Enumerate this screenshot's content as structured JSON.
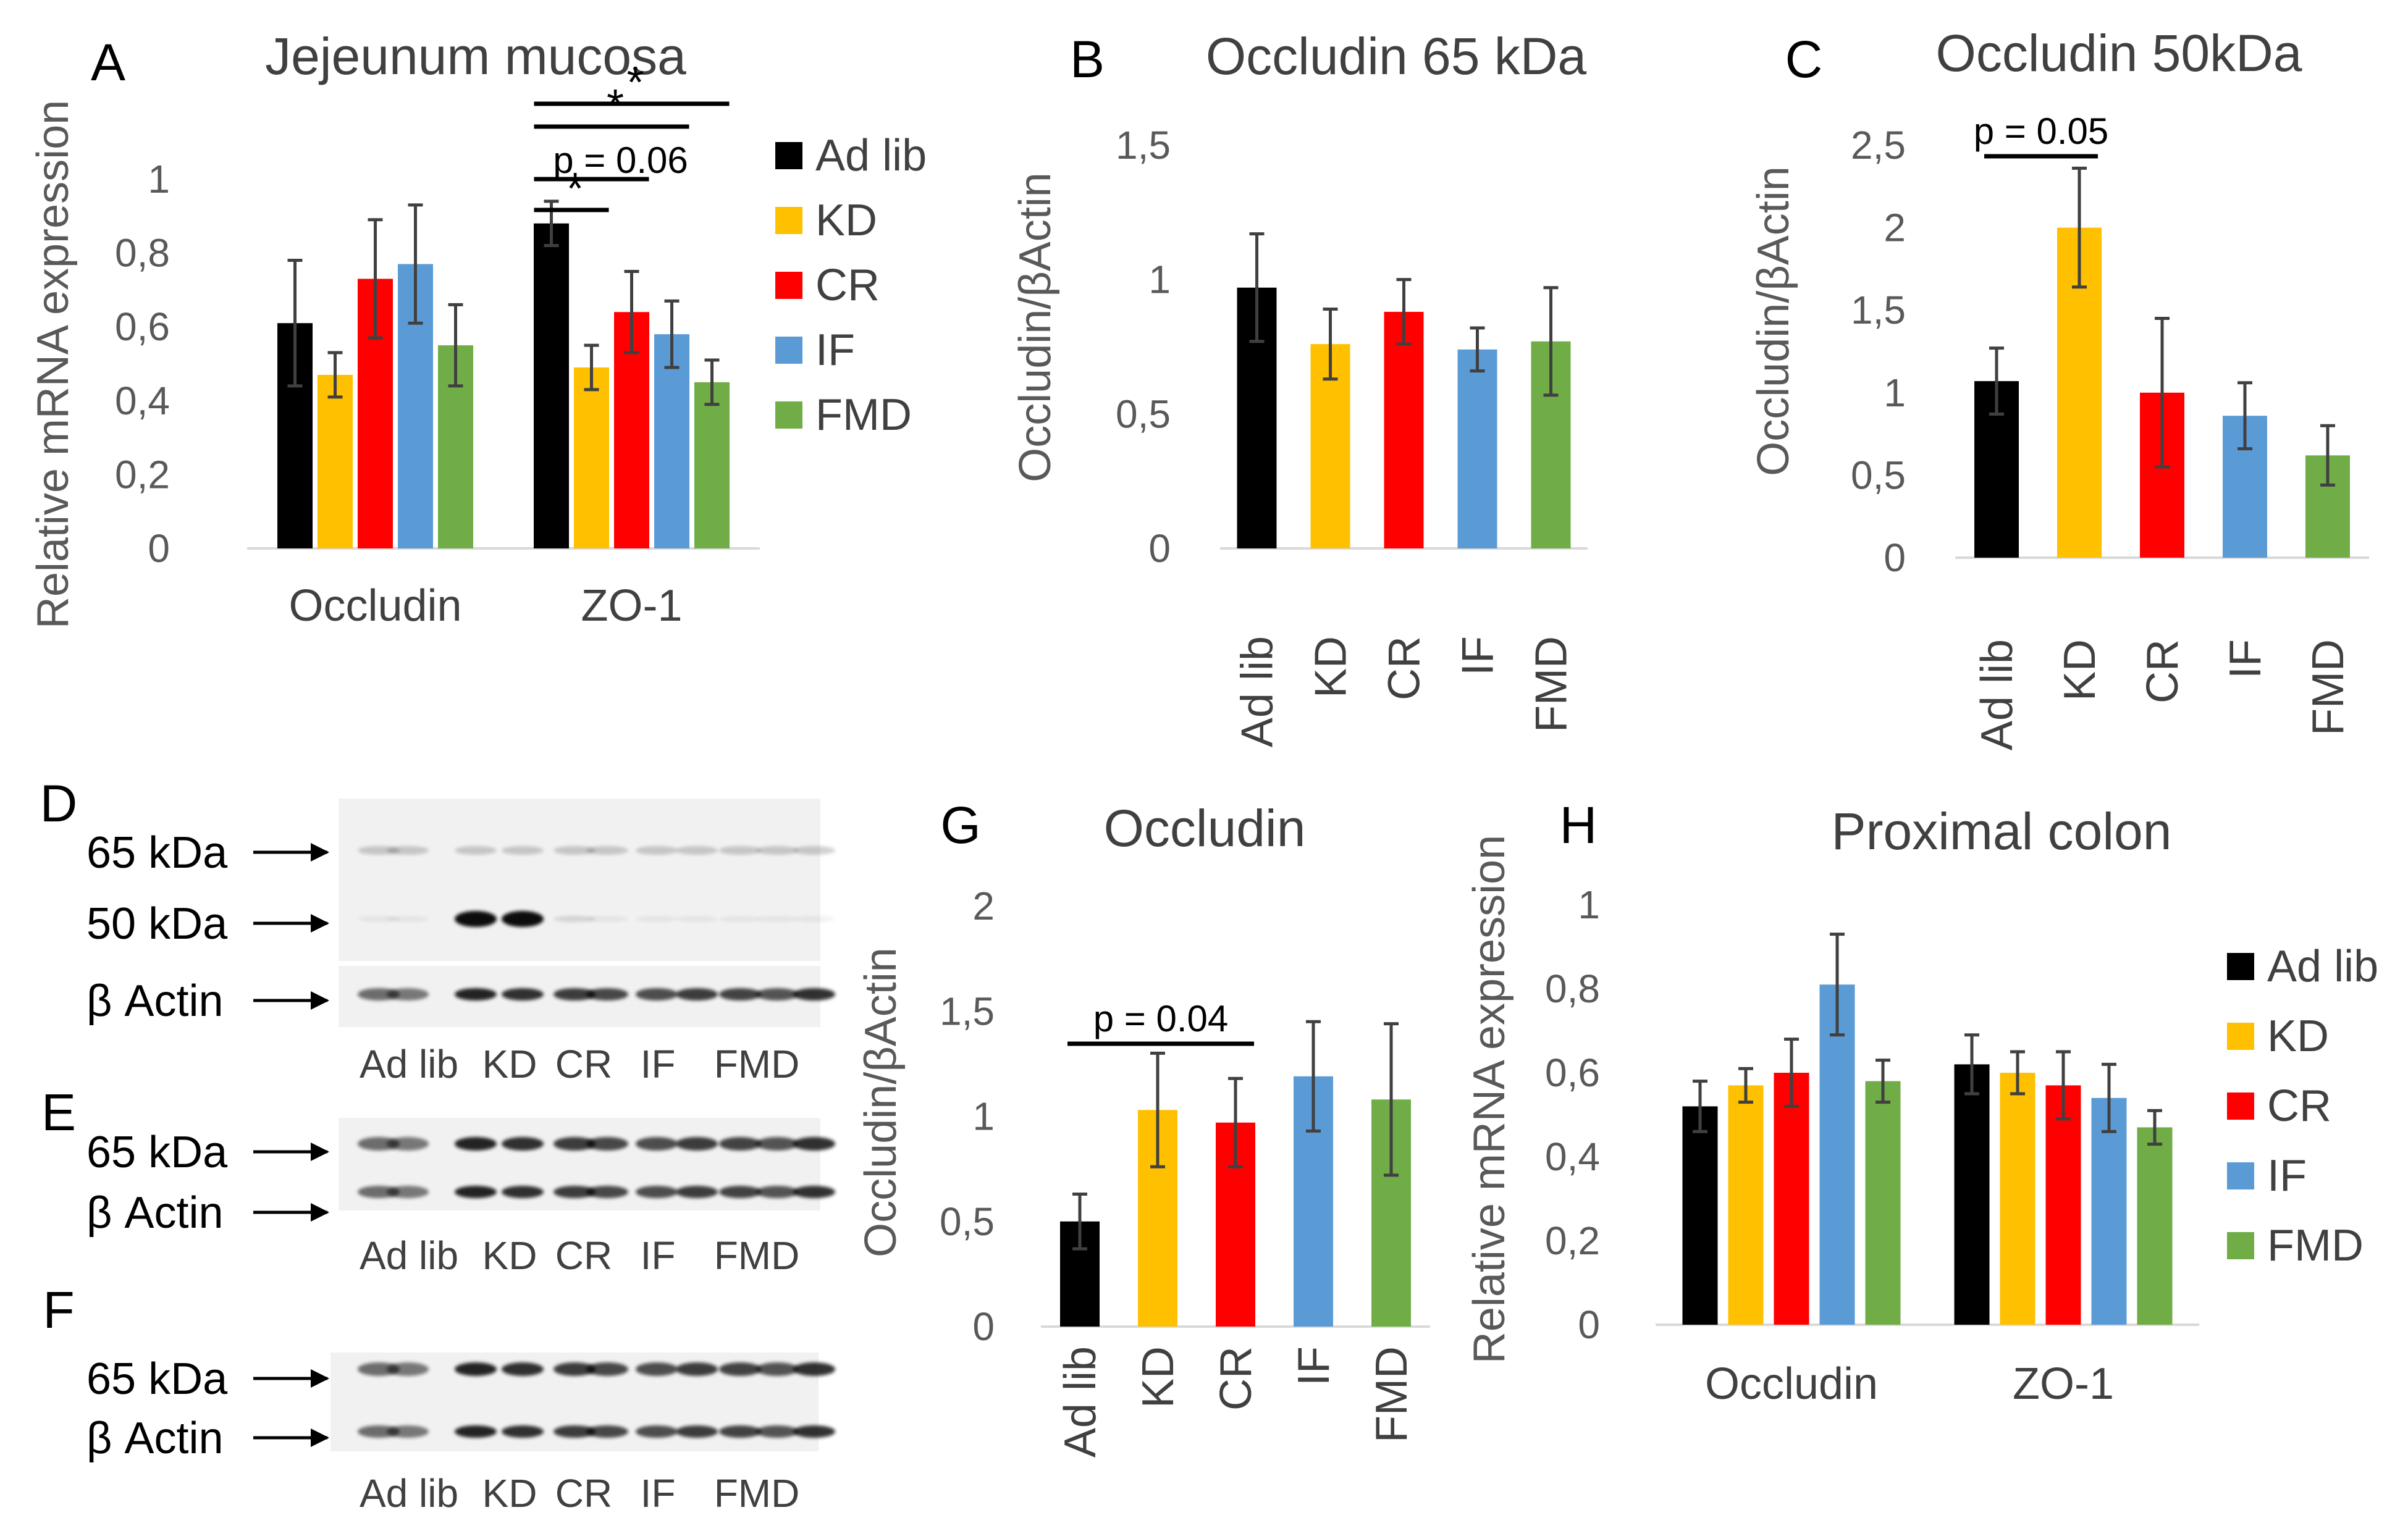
{
  "colors": {
    "Ad lib": "#000000",
    "KD": "#ffc000",
    "CR": "#ff0000",
    "IF": "#5b9bd5",
    "FMD": "#70ad47",
    "error": "#404040",
    "axis": "#d9d9d9"
  },
  "groups": [
    "Ad lib",
    "KD",
    "CR",
    "IF",
    "FMD"
  ],
  "chart_data": [
    {
      "id": "A",
      "letter": "A",
      "type": "bar",
      "title": "Jejeunum mucosa",
      "ylabel": "Relative mRNA expression",
      "ylim": [
        0,
        1
      ],
      "yticks": [
        "0",
        "0,2",
        "0,4",
        "0,6",
        "0,8",
        "1"
      ],
      "categories": [
        "Occludin",
        "ZO-1"
      ],
      "series": [
        {
          "name": "Ad lib",
          "values": [
            0.61,
            0.88
          ],
          "errors": [
            0.17,
            0.06
          ]
        },
        {
          "name": "KD",
          "values": [
            0.47,
            0.49
          ],
          "errors": [
            0.06,
            0.06
          ]
        },
        {
          "name": "CR",
          "values": [
            0.73,
            0.64
          ],
          "errors": [
            0.16,
            0.11
          ]
        },
        {
          "name": "IF",
          "values": [
            0.77,
            0.58
          ],
          "errors": [
            0.16,
            0.09
          ]
        },
        {
          "name": "FMD",
          "values": [
            0.55,
            0.45
          ],
          "errors": [
            0.11,
            0.06
          ]
        }
      ],
      "legend": "right",
      "significance": [
        {
          "label": "*",
          "from": "Ad lib",
          "to": "KD",
          "category": "ZO-1"
        },
        {
          "label": "p = 0.06",
          "from": "Ad lib",
          "to": "CR",
          "category": "ZO-1"
        },
        {
          "label": "*",
          "from": "Ad lib",
          "to": "IF",
          "category": "ZO-1"
        },
        {
          "label": "*",
          "from": "Ad lib",
          "to": "FMD",
          "category": "ZO-1"
        }
      ]
    },
    {
      "id": "B",
      "letter": "B",
      "type": "bar",
      "title": "Occludin 65 kDa",
      "ylabel": "Occludin/βActin",
      "ylim": [
        0,
        1.5
      ],
      "yticks": [
        "0",
        "0,5",
        "1",
        "1,5"
      ],
      "categories": [
        "Ad lib",
        "KD",
        "CR",
        "IF",
        "FMD"
      ],
      "values": [
        0.97,
        0.76,
        0.88,
        0.74,
        0.77
      ],
      "errors": [
        0.2,
        0.13,
        0.12,
        0.08,
        0.2
      ],
      "significance": []
    },
    {
      "id": "C",
      "letter": "C",
      "type": "bar",
      "title": "Occludin 50kDa",
      "ylabel": "Occludin/βActin",
      "ylim": [
        0,
        2.5
      ],
      "yticks": [
        "0",
        "0,5",
        "1",
        "1,5",
        "2",
        "2,5"
      ],
      "categories": [
        "Ad lib",
        "KD",
        "CR",
        "IF",
        "FMD"
      ],
      "values": [
        1.07,
        2.0,
        1.0,
        0.86,
        0.62
      ],
      "errors": [
        0.2,
        0.36,
        0.45,
        0.2,
        0.18
      ],
      "significance": [
        {
          "label": "p = 0.05",
          "from": "Ad lib",
          "to": "KD"
        }
      ]
    },
    {
      "id": "G",
      "letter": "G",
      "type": "bar",
      "title": "Occludin",
      "ylabel": "Occludin/βActin",
      "ylim": [
        0,
        2
      ],
      "yticks": [
        "0",
        "0,5",
        "1",
        "1,5",
        "2"
      ],
      "categories": [
        "Ad lib",
        "KD",
        "CR",
        "IF",
        "FMD"
      ],
      "values": [
        0.5,
        1.03,
        0.97,
        1.19,
        1.08
      ],
      "errors": [
        0.13,
        0.27,
        0.21,
        0.26,
        0.36
      ],
      "significance": [
        {
          "label": "p = 0.04",
          "from": "Ad lib",
          "to": "CR"
        }
      ]
    },
    {
      "id": "H",
      "letter": "H",
      "type": "bar",
      "title": "Proximal colon",
      "ylabel": "Relative mRNA expression",
      "ylim": [
        0,
        1
      ],
      "yticks": [
        "0",
        "0,2",
        "0,4",
        "0,6",
        "0,8",
        "1"
      ],
      "categories": [
        "Occludin",
        "ZO-1"
      ],
      "series": [
        {
          "name": "Ad lib",
          "values": [
            0.52,
            0.62
          ],
          "errors": [
            0.06,
            0.07
          ]
        },
        {
          "name": "KD",
          "values": [
            0.57,
            0.6
          ],
          "errors": [
            0.04,
            0.05
          ]
        },
        {
          "name": "CR",
          "values": [
            0.6,
            0.57
          ],
          "errors": [
            0.08,
            0.08
          ]
        },
        {
          "name": "IF",
          "values": [
            0.81,
            0.54
          ],
          "errors": [
            0.12,
            0.08
          ]
        },
        {
          "name": "FMD",
          "values": [
            0.58,
            0.47
          ],
          "errors": [
            0.05,
            0.04
          ]
        }
      ],
      "legend": "right",
      "significance": []
    }
  ],
  "blots": [
    {
      "id": "D",
      "letter": "D",
      "rows": [
        "65 kDa",
        "50 kDa",
        "β Actin"
      ],
      "lanes": [
        "Ad lib",
        "KD",
        "CR",
        "IF",
        "FMD"
      ]
    },
    {
      "id": "E",
      "letter": "E",
      "rows": [
        "65 kDa",
        "β Actin"
      ],
      "lanes": [
        "Ad lib",
        "KD",
        "CR",
        "IF",
        "FMD"
      ]
    },
    {
      "id": "F",
      "letter": "F",
      "rows": [
        "65 kDa",
        "β Actin"
      ],
      "lanes": [
        "Ad lib",
        "KD",
        "CR",
        "IF",
        "FMD"
      ]
    }
  ]
}
